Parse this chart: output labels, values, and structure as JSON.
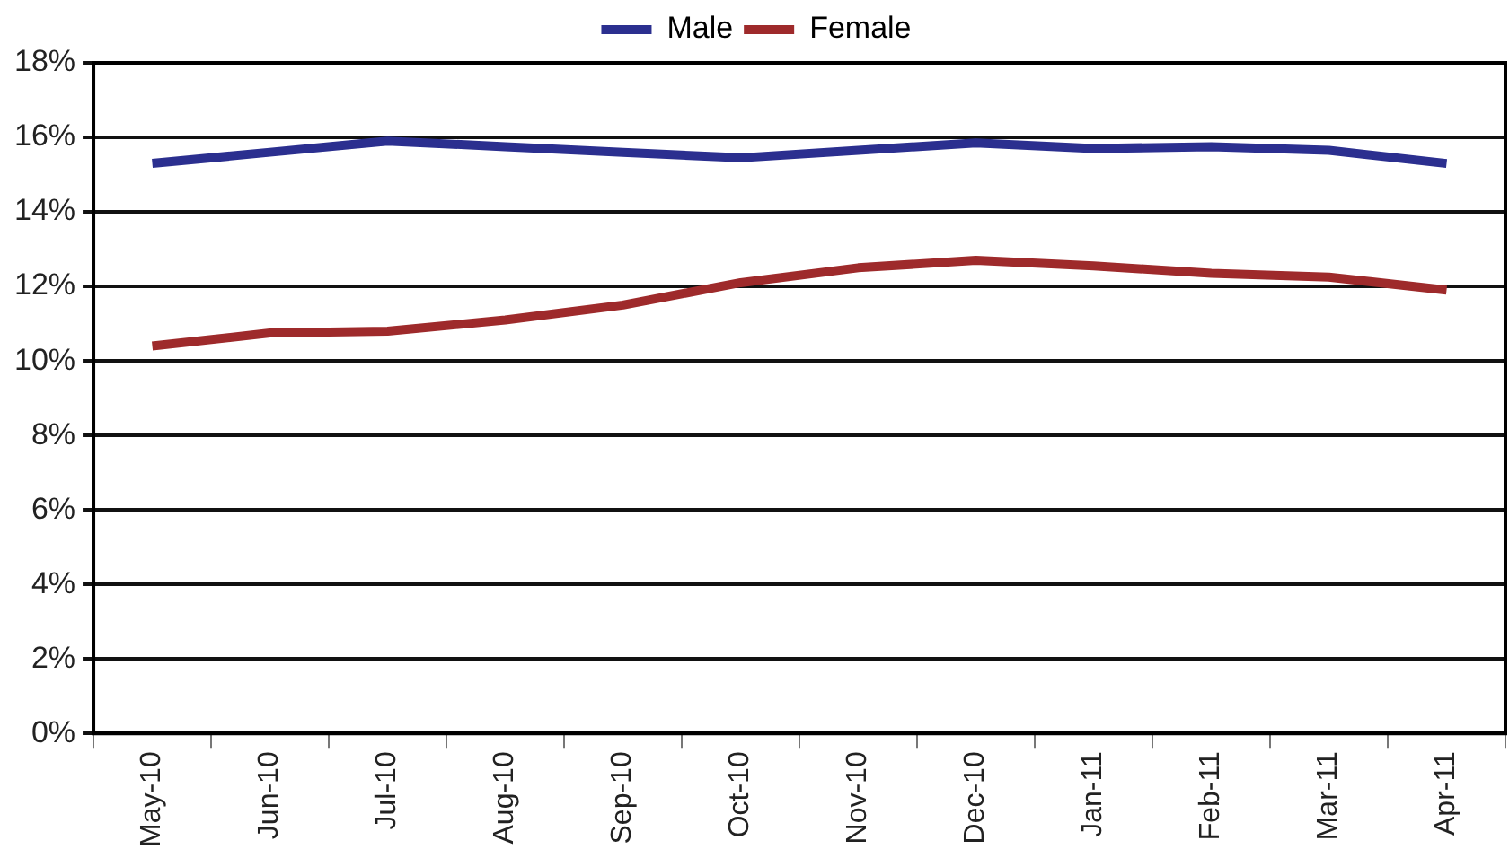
{
  "chart_data": {
    "type": "line",
    "categories": [
      "May-10",
      "Jun-10",
      "Jul-10",
      "Aug-10",
      "Sep-10",
      "Oct-10",
      "Nov-10",
      "Dec-10",
      "Jan-11",
      "Feb-11",
      "Mar-11",
      "Apr-11"
    ],
    "series": [
      {
        "name": "Male",
        "color": "#2b2f8f",
        "values": [
          15.3,
          15.6,
          15.9,
          15.75,
          15.6,
          15.45,
          15.65,
          15.85,
          15.7,
          15.75,
          15.65,
          15.3
        ]
      },
      {
        "name": "Female",
        "color": "#9e2a2b",
        "values": [
          10.4,
          10.75,
          10.8,
          11.1,
          11.5,
          12.1,
          12.5,
          12.7,
          12.55,
          12.35,
          12.25,
          11.9
        ]
      }
    ],
    "ylim": [
      0,
      18
    ],
    "yticks": [
      {
        "value": 0,
        "label": "0%"
      },
      {
        "value": 2,
        "label": "2%"
      },
      {
        "value": 4,
        "label": "4%"
      },
      {
        "value": 6,
        "label": "6%"
      },
      {
        "value": 8,
        "label": "8%"
      },
      {
        "value": 10,
        "label": "10%"
      },
      {
        "value": 12,
        "label": "12%"
      },
      {
        "value": 14,
        "label": "14%"
      },
      {
        "value": 16,
        "label": "16%"
      },
      {
        "value": 18,
        "label": "18%"
      }
    ],
    "grid": "y",
    "legend": "top"
  }
}
